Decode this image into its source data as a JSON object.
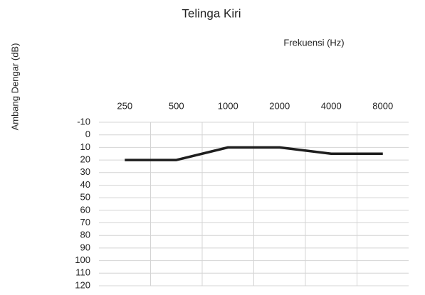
{
  "chart_data": {
    "type": "line",
    "title": "Telinga Kiri",
    "x_label": "Frekuensi (Hz)",
    "y_label": "Ambang Dengar (dB)",
    "categories": [
      "250",
      "500",
      "1000",
      "2000",
      "4000",
      "8000"
    ],
    "values": [
      20,
      20,
      10,
      10,
      15,
      15
    ],
    "color": "#1e1e1e",
    "ylim": [
      -10,
      120
    ],
    "y_inverted": true,
    "yticks": [
      -10,
      0,
      10,
      20,
      30,
      40,
      50,
      60,
      70,
      80,
      90,
      100,
      110,
      120
    ],
    "grid": true
  }
}
